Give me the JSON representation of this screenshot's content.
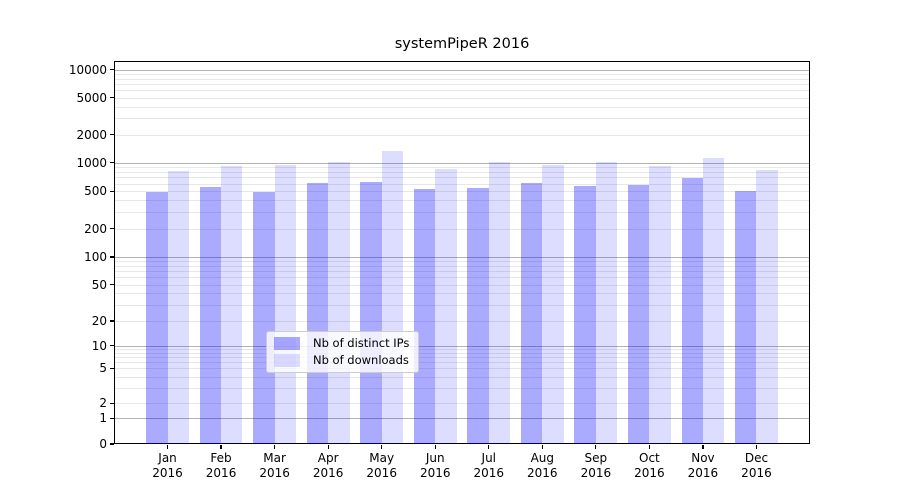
{
  "chart_data": {
    "type": "bar",
    "title": "systemPipeR 2016",
    "categories": [
      "Jan",
      "Feb",
      "Mar",
      "Apr",
      "May",
      "Jun",
      "Jul",
      "Aug",
      "Sep",
      "Oct",
      "Nov",
      "Dec"
    ],
    "category_year": "2016",
    "series": [
      {
        "name": "Nb of distinct IPs",
        "color": "rgba(0,0,255,0.335)",
        "values": [
          494,
          552,
          497,
          612,
          626,
          529,
          539,
          609,
          568,
          585,
          689,
          509
        ]
      },
      {
        "name": "Nb of downloads",
        "color": "rgba(0,0,255,0.135)",
        "values": [
          818,
          910,
          943,
          1012,
          1340,
          858,
          1002,
          949,
          1018,
          916,
          1108,
          842
        ]
      }
    ],
    "yscale": "symlog",
    "ytick_labels": [
      "0",
      "1",
      "2",
      "5",
      "10",
      "20",
      "50",
      "100",
      "200",
      "500",
      "1000",
      "2000",
      "5000",
      "10000"
    ],
    "ylim": [
      0,
      12000
    ],
    "xlabel": "",
    "ylabel": "",
    "grid": "horizontal, major and minor",
    "legend_position": "lower center"
  },
  "colors": {
    "background": "#ffffff",
    "axis": "#000000",
    "text": "#000000",
    "major_grid": "#b3b3b3",
    "minor_grid": "#e7e7e7",
    "legend_border": "#cccccc",
    "legend_bg": "rgba(255,255,255,0.8)"
  }
}
